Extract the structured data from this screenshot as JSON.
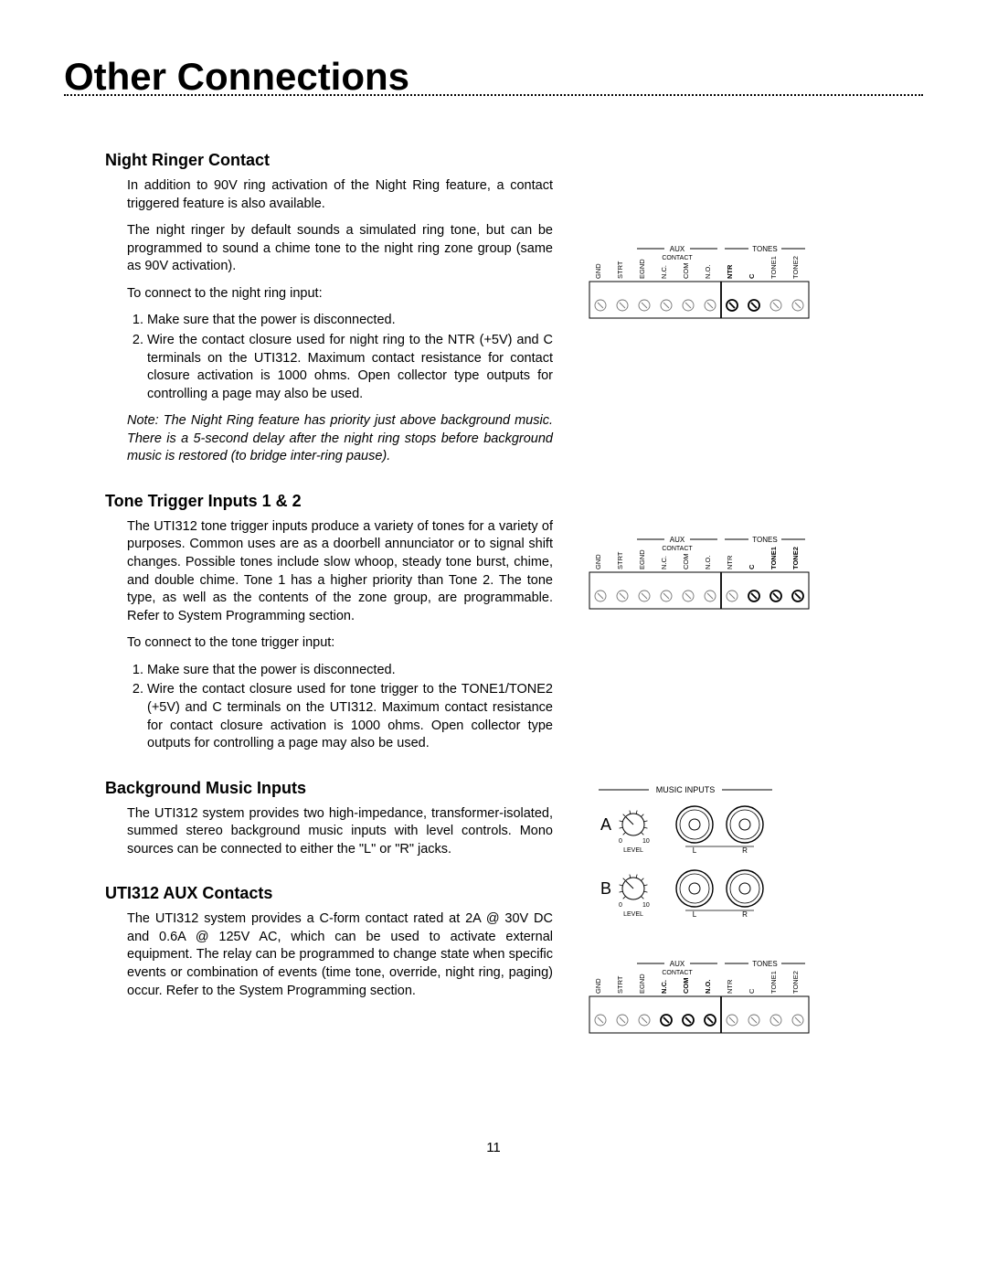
{
  "pageNumber": "11",
  "title": "Other Connections",
  "sections": [
    {
      "heading": "Night Ringer Contact",
      "paragraphs": [
        "In addition to 90V ring activation of the Night Ring feature, a contact triggered feature is also available.",
        "The night ringer by default sounds a simulated ring tone, but can be programmed to sound a chime tone to the night ring zone group (same as 90V activation).",
        "To connect to the night ring input:"
      ],
      "list": [
        "Make sure that the power is disconnected.",
        "Wire the contact closure used for night ring to the NTR (+5V) and C terminals on the UTI312. Maximum contact resistance for contact closure activation is 1000 ohms. Open collector type outputs for controlling a page may also be used."
      ],
      "note": "Note: The Night Ring feature has priority just above background music. There is a 5-second delay after the night ring stops before background music is restored (to bridge inter-ring pause)."
    },
    {
      "heading": "Tone Trigger Inputs 1 & 2",
      "paragraphs": [
        "The UTI312 tone trigger inputs produce a variety of tones for a variety of purposes. Common uses are as a doorbell annunciator or to signal shift changes. Possible tones include slow whoop, steady tone burst, chime, and double chime. Tone 1 has a higher priority than Tone 2. The tone type, as well as the contents of the zone group, are programmable. Refer to System Programming section.",
        "To connect to the tone trigger input:"
      ],
      "list": [
        "Make sure that the power is disconnected.",
        "Wire the contact closure used for tone trigger to the TONE1/TONE2 (+5V) and C terminals on the UTI312. Maximum contact resistance for contact closure activation is 1000 ohms. Open collector type outputs for controlling a page may also be used."
      ]
    },
    {
      "heading": "Background Music Inputs",
      "paragraphs": [
        "The UTI312 system provides two high-impedance, transformer-isolated, summed stereo background music inputs with level controls. Mono sources can be connected to either the \"L\" or \"R\" jacks."
      ]
    },
    {
      "heading": "UTI312 AUX Contacts",
      "paragraphs": [
        "The UTI312 system provides a C-form contact rated at 2A @ 30V DC and 0.6A @ 125V AC, which can be used to activate external equipment. The relay can be programmed to change state when specific events or combination of events (time tone, override, night ring, paging) occur. Refer to the System Programming section."
      ]
    }
  ],
  "figures": {
    "terminalLabels": [
      "GND",
      "STRT",
      "EGND",
      "N.C.",
      "COM",
      "N.O.",
      "NTR",
      "C",
      "TONE1",
      "TONE2"
    ],
    "auxLabel": "AUX",
    "contactLabel": "CONTACT",
    "tonesLabel": "TONES",
    "musicInputs": {
      "title": "MUSIC INPUTS",
      "rows": [
        "A",
        "B"
      ],
      "levelLabel": "LEVEL",
      "zero": "0",
      "ten": "10",
      "l": "L",
      "r": "R"
    },
    "highlight_ntr": [
      "NTR",
      "C"
    ],
    "highlight_tone": [
      "C",
      "TONE1",
      "TONE2"
    ],
    "highlight_aux": [
      "N.C.",
      "COM",
      "N.O."
    ],
    "colors": {
      "stroke": "#000000",
      "background": "#ffffff",
      "boldWeight": 1.8,
      "thinWeight": 0.9
    }
  }
}
